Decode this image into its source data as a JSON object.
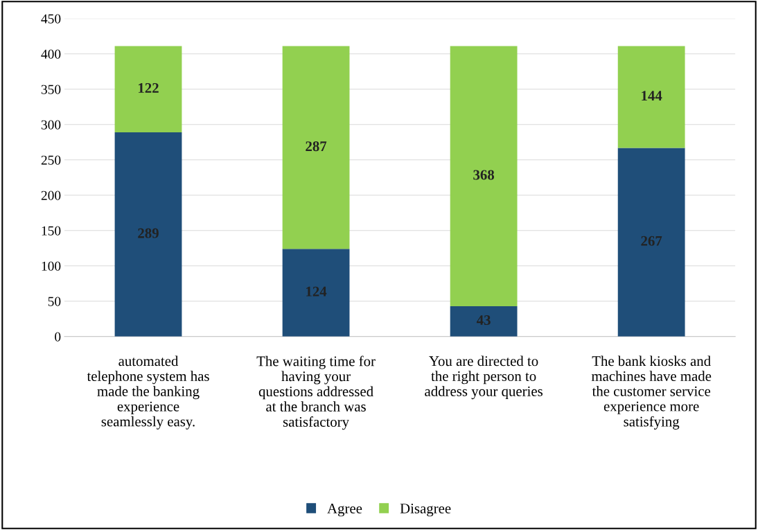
{
  "chart_data": {
    "type": "bar",
    "stacked": true,
    "categories": [
      "automated\ntelephone system has\nmade the banking\nexperience\nseamlessly easy.",
      "The waiting time for\nhaving your\nquestions addressed\nat the branch was\nsatisfactory",
      "You are directed to\nthe right person to\naddress your queries",
      "The bank kiosks and\nmachines have made\nthe customer service\nexperience more\nsatisfying"
    ],
    "series": [
      {
        "name": "Agree",
        "color": "#1f4e79",
        "values": [
          289,
          124,
          43,
          267
        ]
      },
      {
        "name": "Disagree",
        "color": "#92d050",
        "values": [
          122,
          287,
          368,
          144
        ]
      }
    ],
    "ylim": [
      0,
      450
    ],
    "yticks": [
      0,
      50,
      100,
      150,
      200,
      250,
      300,
      350,
      400,
      450
    ],
    "grid": "y",
    "legend": "bottom",
    "data_labels": true
  }
}
